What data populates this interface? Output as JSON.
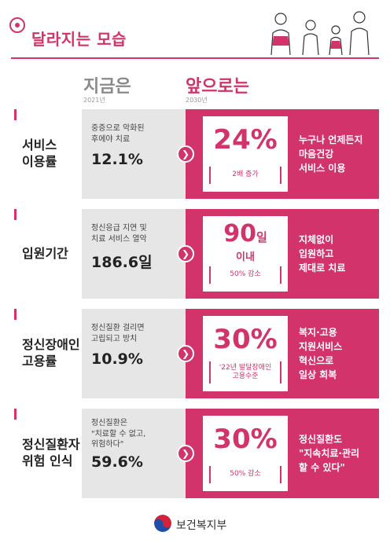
{
  "header": {
    "title": "달라지는 모습"
  },
  "columns": {
    "now": {
      "label": "지금은",
      "year": "2021년"
    },
    "future": {
      "label": "앞으로는",
      "year": "2030년"
    }
  },
  "rows": [
    {
      "label": "서비스\n이용률",
      "now_desc": "중증으로 악화된\n후에야 치료",
      "now_value": "12.1%",
      "future_value": "24%",
      "future_bracket": "2배 증가",
      "future_desc": "누구나 언제든지\n마음건강\n서비스 이용"
    },
    {
      "label": "입원기간",
      "now_desc": "정신응급 지연 및\n치료 서비스 열악",
      "now_value": "186.6일",
      "future_value": "90",
      "future_value_unit": "일",
      "future_value_sub": "이내",
      "future_bracket": "50% 감소",
      "future_desc": "지체없이\n입원하고\n제대로 치료"
    },
    {
      "label": "정신장애인\n고용률",
      "now_desc": "정신질환 걸리면\n고립되고 방치",
      "now_value": "10.9%",
      "future_value": "30%",
      "future_bracket": "'22년 발달장애인\n고용수준",
      "future_desc": "복지·고용\n지원서비스\n혁신으로\n일상 회복"
    },
    {
      "label": "정신질환자\n위험 인식",
      "now_desc": "정신질환은\n\"치료할 수 없고,\n위험하다\"",
      "now_value": "59.6%",
      "future_value": "30%",
      "future_bracket": "50% 감소",
      "future_desc": "정신질환도\n\"지속치료·관리\n할 수 있다\""
    }
  ],
  "footer": {
    "ministry": "보건복지부"
  },
  "colors": {
    "accent": "#d2336b",
    "now_bg": "#e6e6e6"
  },
  "icons": {
    "header_logo": "target-icon",
    "arrow": "chevron-right-icon",
    "footer_logo": "taegeuk-icon",
    "illustration": "family-illustration"
  }
}
